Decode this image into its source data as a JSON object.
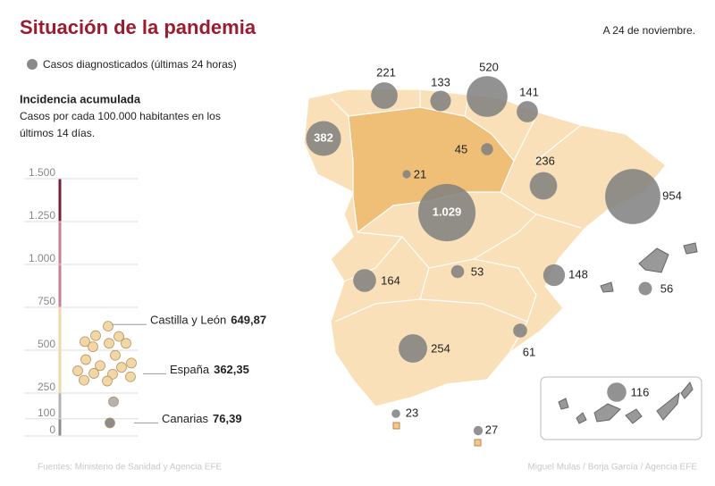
{
  "title": "Situación de la pandemia",
  "date": "A 24 de noviembre.",
  "legend": "Casos diagnosticados (últimas 24 horas)",
  "incidence": {
    "title": "Incidencia acumulada",
    "subtitle": [
      "Casos por cada 100.000 habitantes en los",
      "últimos 14 días."
    ],
    "ylim": [
      0,
      1500
    ],
    "yticks": [
      0,
      100,
      250,
      500,
      750,
      {
        "value": 1000,
        "label": "1.000"
      },
      {
        "value": 1250,
        "label": "1.250"
      },
      {
        "value": 1500,
        "label": "1.500"
      }
    ],
    "bands": [
      {
        "from": 0,
        "to": 100,
        "color": "#8c8c8c"
      },
      {
        "from": 100,
        "to": 250,
        "color": "#b3b3b3"
      },
      {
        "from": 250,
        "to": 750,
        "color": "#f2d7a6"
      },
      {
        "from": 750,
        "to": 1250,
        "color": "#c97f93"
      },
      {
        "from": 1250,
        "to": 1500,
        "color": "#7a1f35"
      }
    ],
    "region_values": [
      640,
      585,
      580,
      550,
      540,
      540,
      520,
      470,
      445,
      425,
      410,
      400,
      380,
      365,
      360,
      345,
      325,
      320,
      200,
      76
    ],
    "callouts": {
      "names": [
        "Castilla y León",
        "España",
        "Canarias"
      ],
      "values": [
        649.87,
        362.35,
        76.39
      ],
      "value_labels": [
        "649,87",
        "362,35",
        "76,39"
      ]
    }
  },
  "bubbles": {
    "values": [
      221,
      133,
      520,
      141,
      382,
      45,
      21,
      236,
      1029,
      954,
      164,
      53,
      148,
      56,
      254,
      61,
      23,
      27,
      116
    ],
    "value_labels": [
      "221",
      "133",
      "520",
      "141",
      "382",
      "45",
      "21",
      "236",
      "1.029",
      "954",
      "164",
      "53",
      "148",
      "56",
      "254",
      "61",
      "23",
      "27",
      "116"
    ]
  },
  "footer": {
    "source": "Fuentes: Ministerio de Sanidad y Agencia EFE",
    "credits": "Miguel Mulas / Borja García / Agencia EFE"
  }
}
